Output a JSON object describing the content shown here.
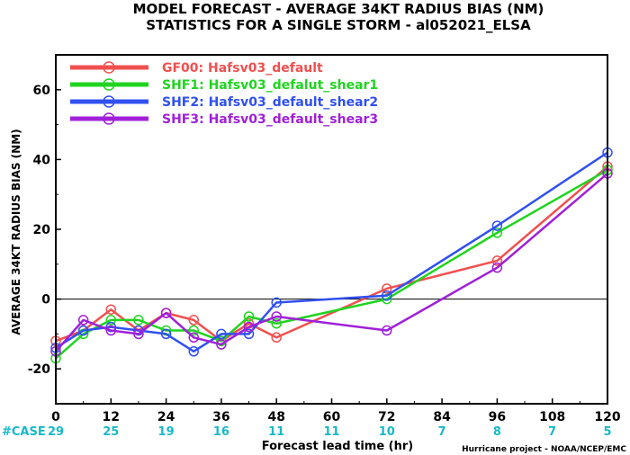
{
  "chart_data": {
    "type": "line",
    "title": "MODEL FORECAST - AVERAGE 34KT RADIUS BIAS (NM)",
    "subtitle": "STATISTICS FOR A SINGLE STORM - al052021_ELSA",
    "xlabel": "Forecast lead time (hr)",
    "ylabel": "AVERAGE 34KT RADIUS BIAS (NM)",
    "xlim": [
      0,
      120
    ],
    "ylim": [
      -30,
      70
    ],
    "xticks": [
      0,
      12,
      24,
      36,
      48,
      60,
      72,
      84,
      96,
      108,
      120
    ],
    "yticks": [
      -20,
      0,
      20,
      40,
      60
    ],
    "grid": false,
    "legend_position": "top-left",
    "case_label": "#CASE",
    "cases": [
      29,
      25,
      19,
      16,
      11,
      11,
      10,
      7,
      8,
      7,
      5
    ],
    "credit": "Hurricane project - NOAA/NCEP/EMC",
    "series": [
      {
        "name": "GF00: Hafsv03_default",
        "color": "#f0504f",
        "x": [
          0,
          6,
          12,
          18,
          24,
          30,
          36,
          42,
          48,
          72,
          96,
          120
        ],
        "y": [
          -12,
          -9,
          -3,
          -9,
          -4,
          -6,
          -12,
          -7,
          -11,
          3,
          11,
          38
        ]
      },
      {
        "name": "SHF1: Hafsv03_defalut_shear1",
        "color": "#20d420",
        "x": [
          0,
          6,
          12,
          18,
          24,
          30,
          36,
          42,
          48,
          72,
          96,
          120
        ],
        "y": [
          -17,
          -10,
          -6,
          -6,
          -9,
          -9,
          -12,
          -5,
          -7,
          0,
          19,
          37
        ]
      },
      {
        "name": "SHF2: Hafsv03_default_shear2",
        "color": "#3050f0",
        "x": [
          0,
          6,
          12,
          18,
          24,
          30,
          36,
          42,
          48,
          72,
          96,
          120
        ],
        "y": [
          -14,
          -9,
          -8,
          -9,
          -10,
          -15,
          -10,
          -10,
          -1,
          1,
          21,
          42
        ]
      },
      {
        "name": "SHF3: Hafsv03_default_shear3",
        "color": "#a020d8",
        "x": [
          0,
          6,
          12,
          18,
          24,
          30,
          36,
          42,
          48,
          72,
          96,
          120
        ],
        "y": [
          -15,
          -6,
          -9,
          -10,
          -4,
          -11,
          -13,
          -8,
          -5,
          -9,
          9,
          36
        ]
      }
    ]
  }
}
